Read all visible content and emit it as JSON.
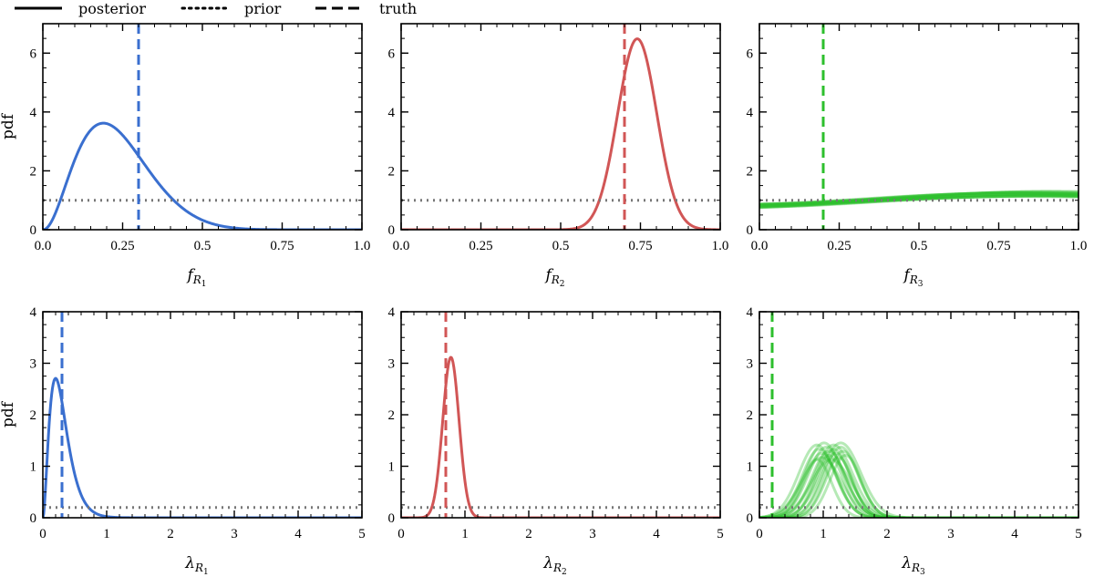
{
  "legend": [
    {
      "label": "posterior",
      "style": "solid"
    },
    {
      "label": "prior",
      "style": "dotted"
    },
    {
      "label": "truth",
      "style": "dashed"
    }
  ],
  "chart_data": [
    {
      "type": "line",
      "title": "",
      "ylabel": "pdf",
      "xlabel_main": "f",
      "xlabel_sub": "R",
      "xlabel_subsub": "1",
      "xlim": [
        0,
        1
      ],
      "ylim": [
        0,
        7
      ],
      "xticks": [
        0,
        0.25,
        0.5,
        0.75,
        1
      ],
      "xtick_labels": [
        "0.0",
        "0.25",
        "0.5",
        "0.75",
        "1.0"
      ],
      "yticks": [
        0,
        2,
        4,
        6
      ],
      "ytick_labels": [
        "0",
        "2",
        "4",
        "6"
      ],
      "minor_x": 0.05,
      "minor_y": 0.5,
      "color": "#3a6fcf",
      "truth": 0.3,
      "prior": 1.0,
      "posterior": {
        "kind": "beta",
        "a": 3.2,
        "b": 10.4,
        "draws": 1
      }
    },
    {
      "type": "line",
      "title": "",
      "ylabel": "",
      "xlabel_main": "f",
      "xlabel_sub": "R",
      "xlabel_subsub": "2",
      "xlim": [
        0,
        1
      ],
      "ylim": [
        0,
        7
      ],
      "xticks": [
        0,
        0.25,
        0.5,
        0.75,
        1
      ],
      "xtick_labels": [
        "0.0",
        "0.25",
        "0.5",
        "0.75",
        "1.0"
      ],
      "yticks": [
        0,
        2,
        4,
        6
      ],
      "ytick_labels": [
        "0",
        "2",
        "4",
        "6"
      ],
      "minor_x": 0.05,
      "minor_y": 0.5,
      "color": "#d15656",
      "truth": 0.7,
      "prior": 1.0,
      "posterior": {
        "kind": "gauss",
        "mu": 0.74,
        "sigma": 0.0615,
        "draws": 1
      }
    },
    {
      "type": "line",
      "title": "",
      "ylabel": "",
      "xlabel_main": "f",
      "xlabel_sub": "R",
      "xlabel_subsub": "3",
      "xlim": [
        0,
        1
      ],
      "ylim": [
        0,
        7
      ],
      "xticks": [
        0,
        0.25,
        0.5,
        0.75,
        1
      ],
      "xtick_labels": [
        "0.0",
        "0.25",
        "0.5",
        "0.75",
        "1.0"
      ],
      "yticks": [
        0,
        2,
        4,
        6
      ],
      "ytick_labels": [
        "0",
        "2",
        "4",
        "6"
      ],
      "minor_x": 0.05,
      "minor_y": 0.5,
      "color": "#2dbf2d",
      "truth": 0.2,
      "prior": 1.0,
      "posterior": {
        "kind": "flat_wave",
        "base": 1.0,
        "amp": 0.28,
        "draws": 18
      }
    },
    {
      "type": "line",
      "title": "",
      "ylabel": "pdf",
      "xlabel_main": "λ",
      "xlabel_sub": "R",
      "xlabel_subsub": "1",
      "xlim": [
        0,
        5
      ],
      "ylim": [
        0,
        4
      ],
      "xticks": [
        0,
        1,
        2,
        3,
        4,
        5
      ],
      "xtick_labels": [
        "0",
        "1",
        "2",
        "3",
        "4",
        "5"
      ],
      "yticks": [
        0,
        1,
        2,
        3,
        4
      ],
      "ytick_labels": [
        "0",
        "1",
        "2",
        "3",
        "4"
      ],
      "minor_x": 0.2,
      "minor_y": 0.25,
      "color": "#3a6fcf",
      "truth": 0.3,
      "prior": 0.2,
      "posterior": {
        "kind": "gamma",
        "k": 3.0,
        "theta": 0.1,
        "draws": 1
      }
    },
    {
      "type": "line",
      "title": "",
      "ylabel": "",
      "xlabel_main": "λ",
      "xlabel_sub": "R",
      "xlabel_subsub": "2",
      "xlim": [
        0,
        5
      ],
      "ylim": [
        0,
        4
      ],
      "xticks": [
        0,
        1,
        2,
        3,
        4,
        5
      ],
      "xtick_labels": [
        "0",
        "1",
        "2",
        "3",
        "4",
        "5"
      ],
      "yticks": [
        0,
        1,
        2,
        3,
        4
      ],
      "ytick_labels": [
        "0",
        "1",
        "2",
        "3",
        "4"
      ],
      "minor_x": 0.2,
      "minor_y": 0.25,
      "color": "#d15656",
      "truth": 0.7,
      "prior": 0.2,
      "posterior": {
        "kind": "gauss",
        "mu": 0.78,
        "sigma": 0.128,
        "draws": 1
      }
    },
    {
      "type": "line",
      "title": "",
      "ylabel": "",
      "xlabel_main": "λ",
      "xlabel_sub": "R",
      "xlabel_subsub": "3",
      "xlim": [
        0,
        5
      ],
      "ylim": [
        0,
        4
      ],
      "xticks": [
        0,
        1,
        2,
        3,
        4,
        5
      ],
      "xtick_labels": [
        "0",
        "1",
        "2",
        "3",
        "4",
        "5"
      ],
      "yticks": [
        0,
        1,
        2,
        3,
        4
      ],
      "ytick_labels": [
        "0",
        "1",
        "2",
        "3",
        "4"
      ],
      "minor_x": 0.2,
      "minor_y": 0.25,
      "color": "#2dbf2d",
      "truth": 0.2,
      "prior": 0.2,
      "posterior": {
        "kind": "gauss_family",
        "mu": 1.05,
        "sigma": 0.27,
        "peak": 1.45,
        "draws": 18
      }
    }
  ]
}
